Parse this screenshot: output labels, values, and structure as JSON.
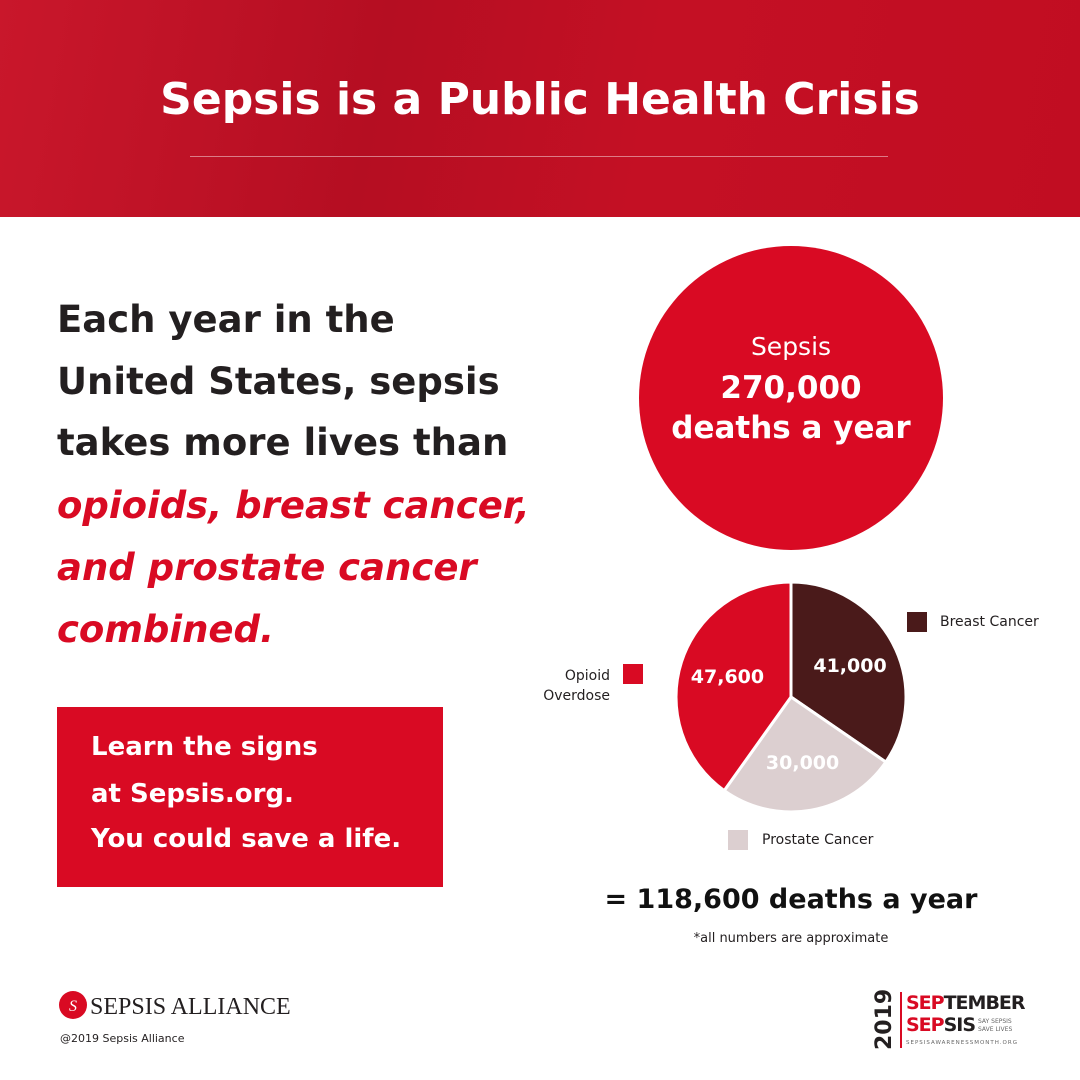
{
  "header": {
    "title": "Sepsis is a Public Health Crisis"
  },
  "intro": [
    "Each year in the",
    "United States, sepsis",
    "takes more lives than"
  ],
  "emphasis": [
    "opioids, breast cancer,",
    "and prostate cancer",
    "combined."
  ],
  "cta": [
    "Learn the signs",
    "at Sepsis.org.",
    "You could save a life."
  ],
  "sepsis": {
    "name": "Sepsis",
    "count": "270,000",
    "unit": "deaths a year",
    "color": "#d90a23"
  },
  "chart_data": {
    "type": "pie",
    "categories": [
      "Breast Cancer",
      "Prostate Cancer",
      "Opioid Overdose"
    ],
    "values": [
      41000,
      30000,
      47600
    ],
    "value_labels": [
      "41,000",
      "30,000",
      "47,600"
    ],
    "colors": [
      "#4a1a1a",
      "#dccfd0",
      "#d90a23"
    ]
  },
  "total": "= 118,600 deaths a year",
  "footnote": "*all numbers are approximate",
  "footer": {
    "brand": "SEPSIS ALLIANCE",
    "copyright": "@2019 Sepsis Alliance",
    "campaign_year": "2019",
    "campaign_line1": [
      "SEP",
      "TEMBER"
    ],
    "campaign_line2": [
      "SEP",
      "SIS"
    ],
    "tagline": [
      "SAY SEPSIS",
      "SAVE LIVES"
    ],
    "website": "SEPSISAWARENESSMONTH.ORG"
  }
}
